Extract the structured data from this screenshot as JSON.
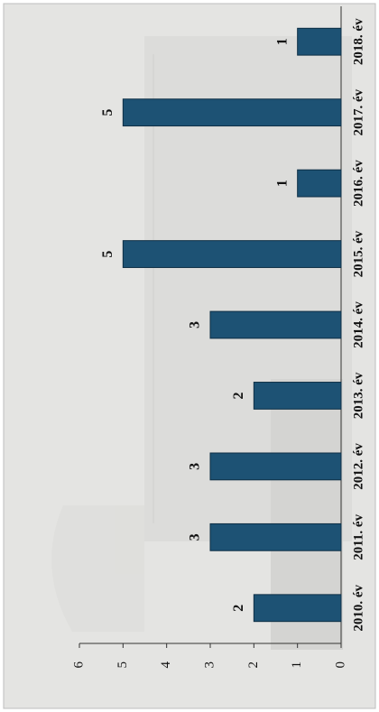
{
  "chart_data": {
    "type": "bar",
    "categories": [
      "2010. év",
      "2011. év",
      "2012. év",
      "2013. év",
      "2014. év",
      "2015. év",
      "2016. év",
      "2017. év",
      "2018. év"
    ],
    "values": [
      2,
      3,
      3,
      2,
      3,
      5,
      1,
      5,
      1
    ],
    "color": "#1d5274",
    "ylim": [
      0,
      6
    ],
    "yticks": [
      0,
      1,
      2,
      3,
      4,
      5,
      6
    ],
    "data_labels": true
  }
}
